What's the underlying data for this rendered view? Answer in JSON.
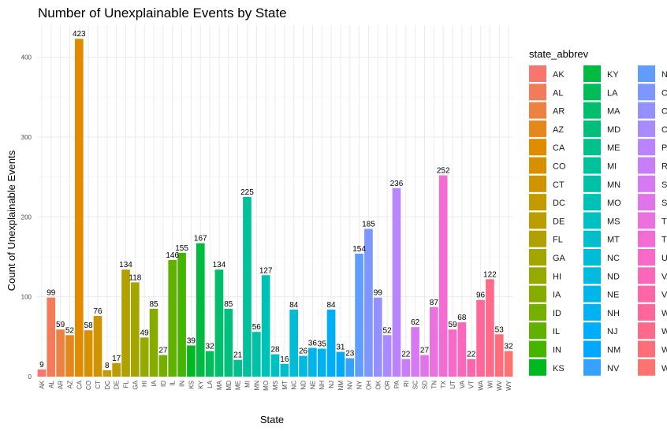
{
  "chart_data": {
    "type": "bar",
    "title": "Number of Unexplainable Events by State",
    "xlabel": "State",
    "ylabel": "Count of Unexplainable Events",
    "ylim": [
      0,
      440
    ],
    "yticks": [
      0,
      100,
      200,
      300,
      400
    ],
    "grid": true,
    "legend": {
      "title": "state_abbrev",
      "placement": "right",
      "columns": 3
    },
    "categories": [
      "AK",
      "AL",
      "AR",
      "AZ",
      "CA",
      "CO",
      "CT",
      "DC",
      "DE",
      "FL",
      "GA",
      "HI",
      "IA",
      "ID",
      "IL",
      "IN",
      "KS",
      "KY",
      "LA",
      "MA",
      "MD",
      "ME",
      "MI",
      "MN",
      "MO",
      "MS",
      "MT",
      "NC",
      "ND",
      "NE",
      "NH",
      "NJ",
      "NM",
      "NV",
      "NY",
      "OH",
      "OK",
      "OR",
      "PA",
      "RI",
      "SC",
      "SD",
      "TN",
      "TX",
      "UT",
      "VA",
      "VT",
      "WA",
      "WI",
      "WV",
      "WY"
    ],
    "values": [
      9,
      99,
      59,
      52,
      423,
      58,
      76,
      8,
      17,
      134,
      118,
      49,
      85,
      27,
      146,
      155,
      39,
      167,
      32,
      134,
      85,
      21,
      225,
      56,
      127,
      28,
      16,
      84,
      26,
      36,
      35,
      84,
      31,
      23,
      154,
      185,
      99,
      52,
      236,
      22,
      62,
      27,
      87,
      252,
      59,
      68,
      22,
      96,
      122,
      53,
      32
    ],
    "colors": [
      "#F8766D",
      "#F37B59",
      "#ED8141",
      "#E7861B",
      "#E08B00",
      "#D89000",
      "#CF9400",
      "#C59900",
      "#BB9D00",
      "#B0A100",
      "#A3A500",
      "#96A900",
      "#86AC00",
      "#75AF00",
      "#61B200",
      "#46B500",
      "#00B81F",
      "#00BA42",
      "#00BC59",
      "#00BE6B",
      "#00BF7D",
      "#00C08C",
      "#00C19B",
      "#00C1A8",
      "#00C1B5",
      "#00C0C1",
      "#00BECC",
      "#00BCD6",
      "#00BAE0",
      "#00B6E9",
      "#00B2F1",
      "#00ADF8",
      "#00A8FF",
      "#35A2FF",
      "#619CFF",
      "#7E96FF",
      "#9590FF",
      "#A98AFF",
      "#BA84FF",
      "#C97EF9",
      "#D779F3",
      "#E274EA",
      "#EB70E0",
      "#F36CD4",
      "#F969C7",
      "#FD67B9",
      "#FF66AA",
      "#FF679A",
      "#FF6A8A",
      "#FE6E7A",
      "#FC7370"
    ]
  }
}
